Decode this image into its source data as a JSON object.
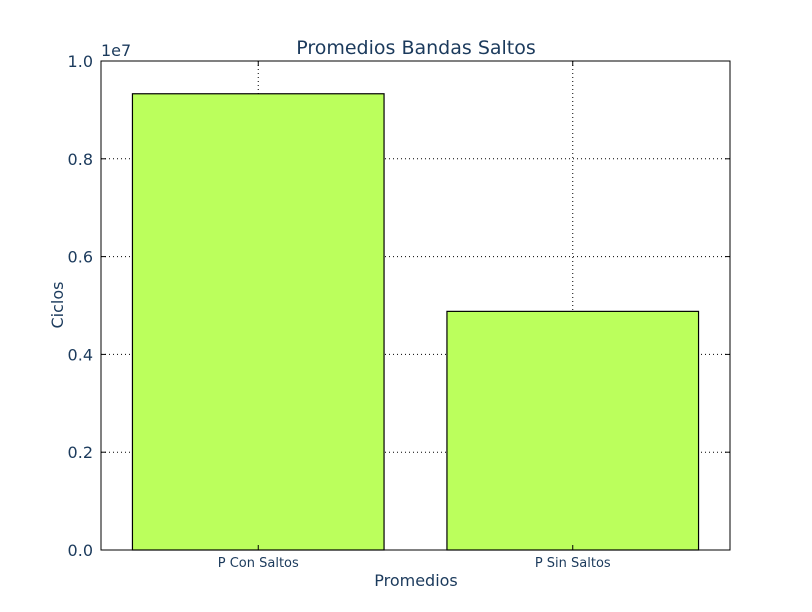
{
  "chart_data": {
    "type": "bar",
    "title": "Promedios Bandas Saltos",
    "xlabel": "Promedios",
    "ylabel": "Ciclos",
    "y_offset_label": "1e7",
    "categories": [
      "P Con Saltos",
      "P Sin Saltos"
    ],
    "values": [
      9330000,
      4880000
    ],
    "ylim": [
      0,
      10000000
    ],
    "yticks": [
      0,
      2000000,
      4000000,
      6000000,
      8000000,
      10000000
    ],
    "ytick_labels": [
      "0.0",
      "0.2",
      "0.4",
      "0.6",
      "0.8",
      "1.0"
    ],
    "grid": true,
    "bar_color": "#bbff5c",
    "edge_color": "#000000",
    "text_color": "#1b3a5c"
  }
}
